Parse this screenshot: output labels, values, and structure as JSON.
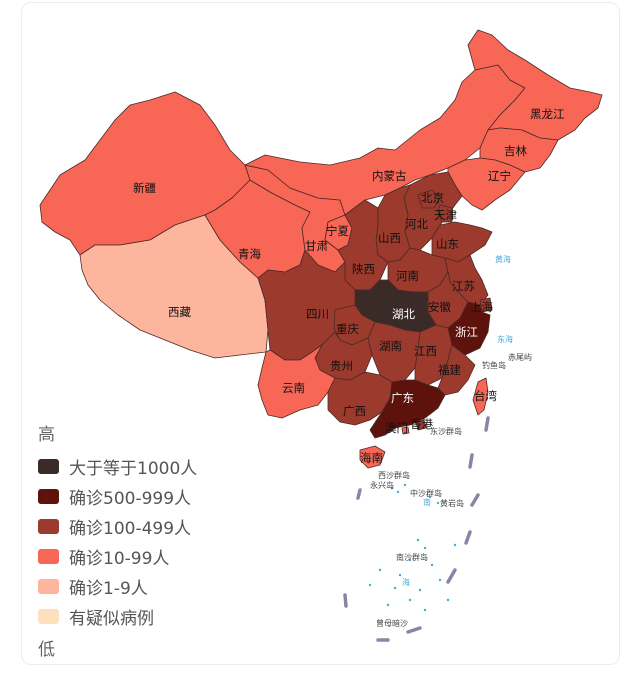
{
  "legend": {
    "high": "高",
    "low": "低",
    "items": [
      {
        "label": "大于等于1000人",
        "color": "#3a2a28"
      },
      {
        "label": "确诊500-999人",
        "color": "#5d120c"
      },
      {
        "label": "确诊100-499人",
        "color": "#9c3a2e"
      },
      {
        "label": "确诊10-99人",
        "color": "#f86656"
      },
      {
        "label": "确诊1-9人",
        "color": "#fdb59e"
      },
      {
        "label": "有疑似病例",
        "color": "#fde0bd"
      }
    ]
  },
  "provinces": {
    "heilongjiang": "黑龙江",
    "jilin": "吉林",
    "liaoning": "辽宁",
    "neimenggu": "内蒙古",
    "xinjiang": "新疆",
    "xizang": "西藏",
    "qinghai": "青海",
    "gansu": "甘肃",
    "ningxia": "宁夏",
    "shanxi": "山西",
    "shaanxi": "陕西",
    "beijing": "北京",
    "tianjin": "天津",
    "hebei": "河北",
    "shandong": "山东",
    "henan": "河南",
    "jiangsu": "江苏",
    "anhui": "安徽",
    "shanghai": "上海",
    "hubei": "湖北",
    "zhejiang": "浙江",
    "sichuan": "四川",
    "chongqing": "重庆",
    "hunan": "湖南",
    "jiangxi": "江西",
    "guizhou": "贵州",
    "yunnan": "云南",
    "guangxi": "广西",
    "guangdong": "广东",
    "fujian": "福建",
    "taiwan": "台湾",
    "hainan": "海南",
    "xianggang": "香港",
    "aomen": "澳门"
  },
  "sea_labels": {
    "huanghai": "黄海",
    "donghai": "东海",
    "chiweiyu": "赤尾屿",
    "diaoyudao": "钓鱼岛",
    "dongsha": "东沙群岛",
    "xisha": "西沙群岛",
    "yongxing": "永兴岛",
    "zhongsha": "中沙群岛",
    "huangyan": "黄岩岛",
    "nansha": "南沙群岛",
    "zengmu": "曾母暗沙",
    "nanhai_1": "南",
    "nanhai_2": "海"
  }
}
